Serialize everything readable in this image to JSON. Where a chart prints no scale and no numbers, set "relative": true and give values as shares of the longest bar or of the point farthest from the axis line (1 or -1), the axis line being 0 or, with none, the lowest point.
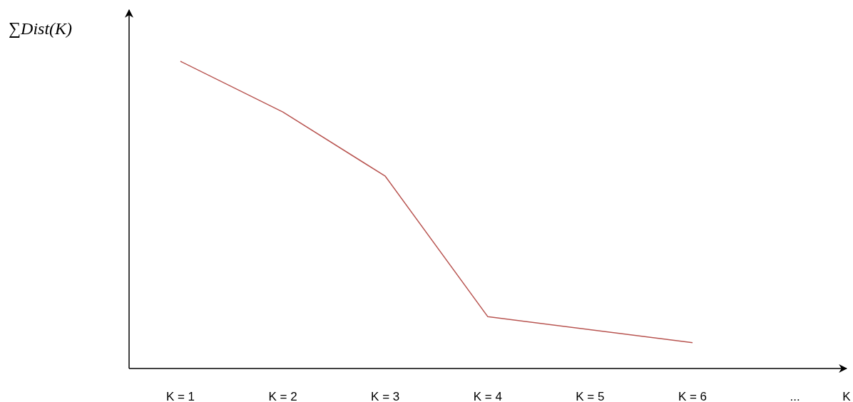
{
  "chart_data": {
    "type": "line",
    "relative": true,
    "ylabel": "∑Dist(K)",
    "xlabel": "K",
    "categories": [
      "K = 1",
      "K = 2",
      "K = 3",
      "K = 4",
      "K = 5",
      "K = 6",
      "..."
    ],
    "series": [
      {
        "color": "#b85450",
        "values": [
          1,
          0.835,
          0.626,
          0.169,
          null,
          0.084,
          null
        ]
      }
    ],
    "marker": "none"
  }
}
